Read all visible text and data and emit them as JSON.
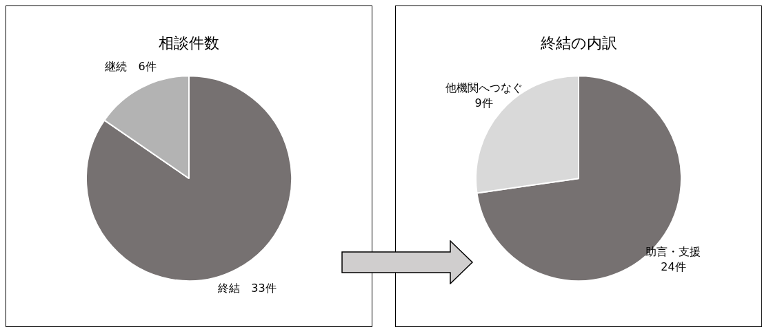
{
  "chart_data": [
    {
      "type": "pie",
      "title": "相談件数",
      "categories": [
        "終結",
        "継続"
      ],
      "values": [
        33,
        6
      ],
      "colors": [
        "#767171",
        "#b3b3b3"
      ],
      "value_labels": [
        "33件",
        "6件"
      ]
    },
    {
      "type": "pie",
      "title": "終結の内訳",
      "categories": [
        "助言・支援",
        "他機関へつなぐ"
      ],
      "values": [
        24,
        9
      ],
      "colors": [
        "#767171",
        "#d9d9d9"
      ],
      "value_labels": [
        "24件",
        "9件"
      ]
    }
  ]
}
